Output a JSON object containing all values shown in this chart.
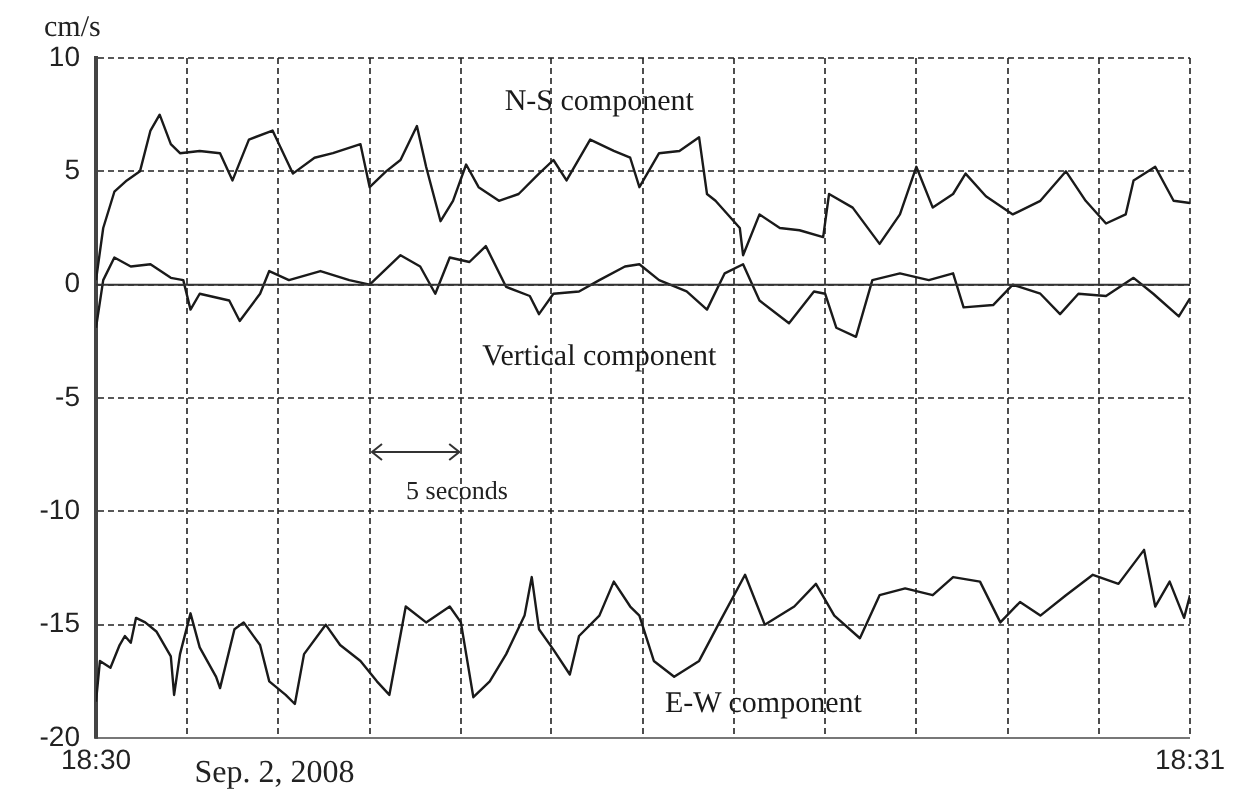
{
  "chart_data": {
    "type": "line",
    "ylabel": "cm/s",
    "xlim": [
      18.5,
      18.51667
    ],
    "ylim": [
      -20,
      10
    ],
    "xticks": [
      {
        "value": 18.5,
        "label": "18:30"
      },
      {
        "value": 18.50139,
        "label": null
      },
      {
        "value": 18.50278,
        "label": null
      },
      {
        "value": 18.50417,
        "label": null
      },
      {
        "value": 18.50556,
        "label": null
      },
      {
        "value": 18.50694,
        "label": null
      },
      {
        "value": 18.50833,
        "label": null
      },
      {
        "value": 18.50972,
        "label": null
      },
      {
        "value": 18.51111,
        "label": null
      },
      {
        "value": 18.5125,
        "label": null
      },
      {
        "value": 18.51389,
        "label": null
      },
      {
        "value": 18.51528,
        "label": null
      },
      {
        "value": 18.51667,
        "label": "18:31"
      }
    ],
    "yticks": [
      -20,
      -15,
      -10,
      -5,
      0,
      5,
      10
    ],
    "grid": true,
    "legend": false,
    "marker": "none",
    "line_style": "solid",
    "ref_lines": [
      {
        "axis": "y",
        "value": 0,
        "color": "#333333",
        "line_style": "solid"
      }
    ],
    "annotations": [
      "Sep. 2, 2008",
      "5 seconds"
    ],
    "series": [
      {
        "name": "N-S component",
        "color": "#1a1a1a",
        "x": [
          18.5,
          18.50011,
          18.50028,
          18.50047,
          18.50067,
          18.50083,
          18.50097,
          18.50114,
          18.50128,
          18.50158,
          18.50189,
          18.50208,
          18.50233,
          18.50269,
          18.503,
          18.50333,
          18.50361,
          18.50403,
          18.50417,
          18.50442,
          18.50464,
          18.50489,
          18.50503,
          18.50525,
          18.50544,
          18.50564,
          18.50583,
          18.50614,
          18.50644,
          18.50675,
          18.50697,
          18.50717,
          18.50753,
          18.50789,
          18.50814,
          18.50828,
          18.50858,
          18.50889,
          18.50919,
          18.50931,
          18.50944,
          18.50981,
          18.50986,
          18.51011,
          18.51042,
          18.51072,
          18.51108,
          18.51117,
          18.51153,
          18.51194,
          18.51225,
          18.5125,
          18.51275,
          18.51306,
          18.51325,
          18.51356,
          18.51397,
          18.51439,
          18.51478,
          18.51508,
          18.51539,
          18.51569,
          18.51581,
          18.51614,
          18.51642,
          18.51667
        ],
        "values": [
          0.2,
          2.5,
          4.1,
          4.6,
          5.0,
          6.8,
          7.5,
          6.2,
          5.8,
          5.9,
          5.8,
          4.6,
          6.4,
          6.8,
          4.9,
          5.6,
          5.8,
          6.2,
          4.3,
          5.0,
          5.5,
          7.0,
          5.2,
          2.8,
          3.7,
          5.3,
          4.3,
          3.7,
          4.0,
          4.9,
          5.5,
          4.6,
          6.4,
          5.9,
          5.6,
          4.3,
          5.8,
          5.9,
          6.5,
          4.0,
          3.7,
          2.5,
          1.3,
          3.1,
          2.5,
          2.4,
          2.1,
          4.0,
          3.4,
          1.8,
          3.1,
          5.2,
          3.4,
          4.0,
          4.9,
          3.9,
          3.1,
          3.7,
          5.0,
          3.7,
          2.7,
          3.1,
          4.6,
          5.2,
          3.7,
          3.6
        ]
      },
      {
        "name": "Vertical component",
        "color": "#1a1a1a",
        "x": [
          18.5,
          18.50011,
          18.50028,
          18.50053,
          18.50083,
          18.50114,
          18.50133,
          18.50144,
          18.50158,
          18.50203,
          18.50219,
          18.5025,
          18.50264,
          18.50294,
          18.50342,
          18.50386,
          18.50417,
          18.50464,
          18.50494,
          18.50517,
          18.50539,
          18.50569,
          18.50594,
          18.50625,
          18.50661,
          18.50675,
          18.50697,
          18.50736,
          18.50767,
          18.50806,
          18.50828,
          18.50858,
          18.509,
          18.50931,
          18.50958,
          18.50986,
          18.51011,
          18.51056,
          18.51094,
          18.51111,
          18.51128,
          18.51158,
          18.51183,
          18.51225,
          18.51269,
          18.51306,
          18.51322,
          18.51367,
          18.51397,
          18.51439,
          18.51469,
          18.51497,
          18.51539,
          18.51581,
          18.51611,
          18.5165,
          18.51667
        ],
        "values": [
          -1.9,
          0.2,
          1.2,
          0.8,
          0.9,
          0.3,
          0.2,
          -1.1,
          -0.4,
          -0.7,
          -1.6,
          -0.4,
          0.6,
          0.2,
          0.6,
          0.2,
          0.0,
          1.3,
          0.8,
          -0.4,
          1.2,
          1.0,
          1.7,
          -0.1,
          -0.5,
          -1.3,
          -0.4,
          -0.3,
          0.2,
          0.8,
          0.9,
          0.2,
          -0.3,
          -1.1,
          0.5,
          0.9,
          -0.7,
          -1.7,
          -0.3,
          -0.4,
          -1.9,
          -2.3,
          0.2,
          0.5,
          0.2,
          0.5,
          -1.0,
          -0.9,
          0.0,
          -0.4,
          -1.3,
          -0.4,
          -0.5,
          0.3,
          -0.4,
          -1.4,
          -0.6
        ]
      },
      {
        "name": "E-W component",
        "color": "#1a1a1a",
        "x": [
          18.5,
          18.50006,
          18.50022,
          18.50036,
          18.50044,
          18.50053,
          18.50061,
          18.50075,
          18.50092,
          18.50114,
          18.50119,
          18.50128,
          18.50144,
          18.50158,
          18.50183,
          18.50189,
          18.50211,
          18.50225,
          18.5025,
          18.50264,
          18.50289,
          18.50303,
          18.50317,
          18.5035,
          18.50372,
          18.50403,
          18.50428,
          18.50447,
          18.50472,
          18.50503,
          18.50539,
          18.50556,
          18.50575,
          18.506,
          18.50625,
          18.50653,
          18.50664,
          18.50675,
          18.50697,
          18.50722,
          18.50736,
          18.50767,
          18.50789,
          18.50814,
          18.50828,
          18.5085,
          18.50881,
          18.50919,
          18.5095,
          18.50989,
          18.51019,
          18.51064,
          18.51097,
          18.51125,
          18.51164,
          18.51194,
          18.51233,
          18.51275,
          18.51306,
          18.51347,
          18.51378,
          18.51408,
          18.51439,
          18.51478,
          18.51519,
          18.51558,
          18.51597,
          18.51614,
          18.51636,
          18.51658,
          18.51667
        ],
        "values": [
          -18.4,
          -16.6,
          -16.9,
          -15.9,
          -15.5,
          -15.8,
          -14.7,
          -14.9,
          -15.3,
          -16.4,
          -18.1,
          -16.3,
          -14.5,
          -16.0,
          -17.3,
          -17.8,
          -15.2,
          -14.9,
          -15.9,
          -17.5,
          -18.1,
          -18.5,
          -16.3,
          -15.0,
          -15.9,
          -16.6,
          -17.5,
          -18.1,
          -14.2,
          -14.9,
          -14.2,
          -14.9,
          -18.2,
          -17.5,
          -16.3,
          -14.6,
          -12.9,
          -15.2,
          -16.1,
          -17.2,
          -15.5,
          -14.6,
          -13.1,
          -14.2,
          -14.6,
          -16.6,
          -17.3,
          -16.6,
          -14.9,
          -12.8,
          -15.0,
          -14.2,
          -13.2,
          -14.6,
          -15.6,
          -13.7,
          -13.4,
          -13.7,
          -12.9,
          -13.1,
          -14.9,
          -14.0,
          -14.6,
          -13.7,
          -12.8,
          -13.2,
          -11.7,
          -14.2,
          -13.1,
          -14.7,
          -13.7
        ]
      }
    ]
  }
}
